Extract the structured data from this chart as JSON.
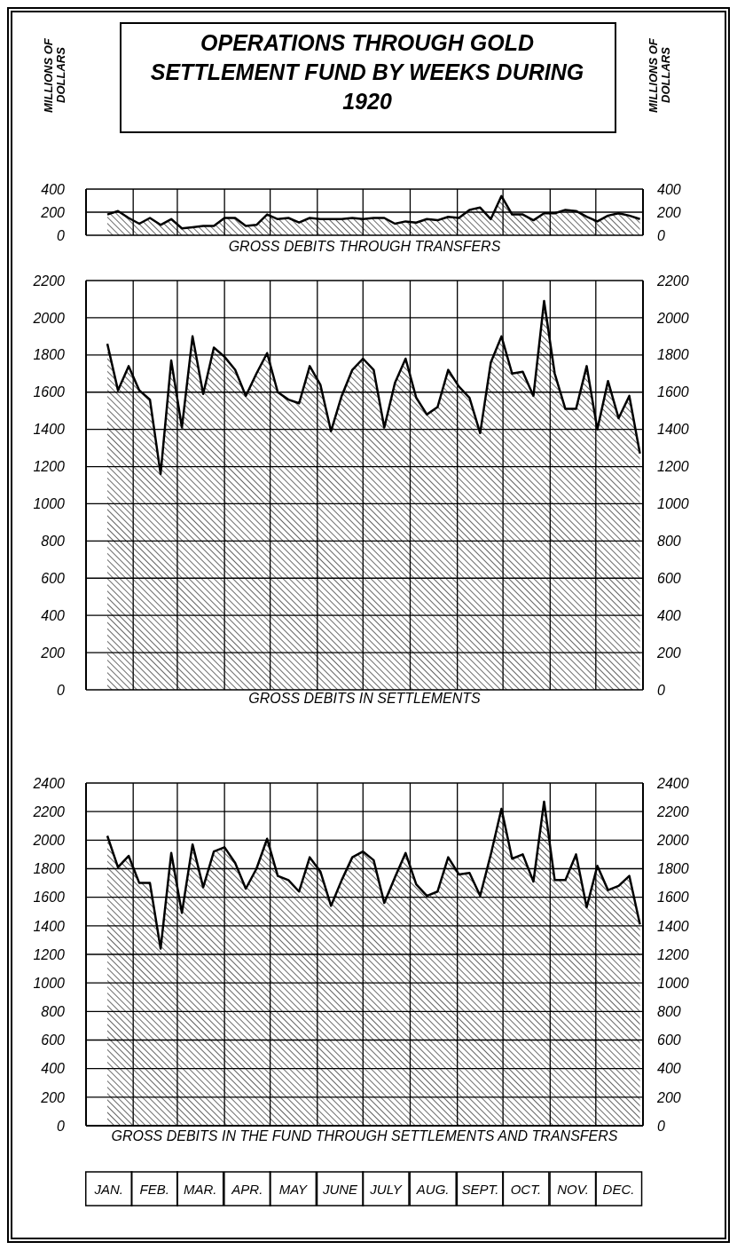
{
  "chart_data": [
    {
      "type": "area",
      "title": "OPERATIONS THROUGH GOLD SETTLEMENT FUND BY WEEKS DURING 1920",
      "ylabel": "MILLIONS OF DOLLARS",
      "y2label": "MILLIONS OF DOLLARS",
      "xlabel": "GROSS DEBITS THROUGH TRANSFERS",
      "x": [
        "1920-01-15",
        "1920-01-22",
        "1920-01-29",
        "1920-02-05",
        "1920-02-12",
        "1920-02-19",
        "1920-02-26",
        "1920-03-04",
        "1920-03-11",
        "1920-03-18",
        "1920-03-25",
        "1920-04-01",
        "1920-04-08",
        "1920-04-15",
        "1920-04-22",
        "1920-04-29",
        "1920-05-06",
        "1920-05-13",
        "1920-05-20",
        "1920-05-27",
        "1920-06-03",
        "1920-06-10",
        "1920-06-17",
        "1920-06-24",
        "1920-07-01",
        "1920-07-08",
        "1920-07-15",
        "1920-07-22",
        "1920-07-29",
        "1920-08-05",
        "1920-08-12",
        "1920-08-19",
        "1920-08-26",
        "1920-09-02",
        "1920-09-09",
        "1920-09-16",
        "1920-09-23",
        "1920-09-30",
        "1920-10-07",
        "1920-10-14",
        "1920-10-21",
        "1920-10-28",
        "1920-11-04",
        "1920-11-11",
        "1920-11-18",
        "1920-11-25",
        "1920-12-02",
        "1920-12-09",
        "1920-12-16",
        "1920-12-23",
        "1920-12-30"
      ],
      "values": [
        180,
        210,
        150,
        100,
        150,
        90,
        140,
        60,
        70,
        80,
        80,
        150,
        150,
        80,
        90,
        180,
        140,
        150,
        110,
        150,
        140,
        140,
        140,
        150,
        140,
        150,
        150,
        100,
        120,
        110,
        140,
        130,
        160,
        150,
        220,
        240,
        140,
        340,
        180,
        180,
        130,
        190,
        190,
        220,
        210,
        160,
        120,
        170,
        190,
        170,
        140
      ],
      "color": "#000000",
      "xlim": [
        "1920-01-01",
        "1921-01-01"
      ],
      "xticks": [
        {
          "value": "1920-01-01",
          "label": null
        },
        {
          "value": "1920-02-01",
          "label": null
        },
        {
          "value": "1920-03-01",
          "label": null
        },
        {
          "value": "1920-04-01",
          "label": null
        },
        {
          "value": "1920-05-01",
          "label": null
        },
        {
          "value": "1920-06-01",
          "label": null
        },
        {
          "value": "1920-07-01",
          "label": null
        },
        {
          "value": "1920-08-01",
          "label": null
        },
        {
          "value": "1920-09-01",
          "label": null
        },
        {
          "value": "1920-10-01",
          "label": null
        },
        {
          "value": "1920-11-01",
          "label": null
        },
        {
          "value": "1920-12-01",
          "label": null
        },
        {
          "value": "1921-01-01",
          "label": null
        }
      ],
      "ylim": [
        0,
        400
      ],
      "yticks": [
        0,
        200,
        400
      ],
      "y2lim": [
        0,
        400
      ],
      "y2ticks": [
        0,
        200,
        400
      ],
      "grid": true,
      "tick_labels": "y"
    },
    {
      "type": "area",
      "xlabel": "GROSS DEBITS IN SETTLEMENTS",
      "x": [
        "1920-01-15",
        "1920-01-22",
        "1920-01-29",
        "1920-02-05",
        "1920-02-12",
        "1920-02-19",
        "1920-02-26",
        "1920-03-04",
        "1920-03-11",
        "1920-03-18",
        "1920-03-25",
        "1920-04-01",
        "1920-04-08",
        "1920-04-15",
        "1920-04-22",
        "1920-04-29",
        "1920-05-06",
        "1920-05-13",
        "1920-05-20",
        "1920-05-27",
        "1920-06-03",
        "1920-06-10",
        "1920-06-17",
        "1920-06-24",
        "1920-07-01",
        "1920-07-08",
        "1920-07-15",
        "1920-07-22",
        "1920-07-29",
        "1920-08-05",
        "1920-08-12",
        "1920-08-19",
        "1920-08-26",
        "1920-09-02",
        "1920-09-09",
        "1920-09-16",
        "1920-09-23",
        "1920-09-30",
        "1920-10-07",
        "1920-10-14",
        "1920-10-21",
        "1920-10-28",
        "1920-11-04",
        "1920-11-11",
        "1920-11-18",
        "1920-11-25",
        "1920-12-02",
        "1920-12-09",
        "1920-12-16",
        "1920-12-23",
        "1920-12-30"
      ],
      "values": [
        1860,
        1610,
        1740,
        1610,
        1560,
        1160,
        1770,
        1410,
        1900,
        1590,
        1840,
        1790,
        1720,
        1580,
        1700,
        1810,
        1600,
        1560,
        1540,
        1740,
        1640,
        1390,
        1580,
        1720,
        1780,
        1720,
        1410,
        1650,
        1780,
        1570,
        1480,
        1520,
        1720,
        1630,
        1570,
        1380,
        1760,
        1900,
        1700,
        1710,
        1580,
        2090,
        1700,
        1510,
        1510,
        1740,
        1400,
        1660,
        1460,
        1580,
        1270
      ],
      "color": "#000000",
      "xlim": [
        "1920-01-01",
        "1921-01-01"
      ],
      "xticks": [
        {
          "value": "1920-01-01",
          "label": null
        },
        {
          "value": "1920-02-01",
          "label": null
        },
        {
          "value": "1920-03-01",
          "label": null
        },
        {
          "value": "1920-04-01",
          "label": null
        },
        {
          "value": "1920-05-01",
          "label": null
        },
        {
          "value": "1920-06-01",
          "label": null
        },
        {
          "value": "1920-07-01",
          "label": null
        },
        {
          "value": "1920-08-01",
          "label": null
        },
        {
          "value": "1920-09-01",
          "label": null
        },
        {
          "value": "1920-10-01",
          "label": null
        },
        {
          "value": "1920-11-01",
          "label": null
        },
        {
          "value": "1920-12-01",
          "label": null
        },
        {
          "value": "1921-01-01",
          "label": null
        }
      ],
      "ylim": [
        0,
        2200
      ],
      "yticks": [
        0,
        200,
        400,
        600,
        800,
        1000,
        1200,
        1400,
        1600,
        1800,
        2000,
        2200
      ],
      "y2lim": [
        0,
        2200
      ],
      "y2ticks": [
        0,
        200,
        400,
        600,
        800,
        1000,
        1200,
        1400,
        1600,
        1800,
        2000,
        2200
      ],
      "grid": true,
      "tick_labels": "y"
    },
    {
      "type": "area",
      "xlabel": "GROSS DEBITS IN THE FUND THROUGH SETTLEMENTS AND TRANSFERS",
      "x": [
        "1920-01-15",
        "1920-01-22",
        "1920-01-29",
        "1920-02-05",
        "1920-02-12",
        "1920-02-19",
        "1920-02-26",
        "1920-03-04",
        "1920-03-11",
        "1920-03-18",
        "1920-03-25",
        "1920-04-01",
        "1920-04-08",
        "1920-04-15",
        "1920-04-22",
        "1920-04-29",
        "1920-05-06",
        "1920-05-13",
        "1920-05-20",
        "1920-05-27",
        "1920-06-03",
        "1920-06-10",
        "1920-06-17",
        "1920-06-24",
        "1920-07-01",
        "1920-07-08",
        "1920-07-15",
        "1920-07-22",
        "1920-07-29",
        "1920-08-05",
        "1920-08-12",
        "1920-08-19",
        "1920-08-26",
        "1920-09-02",
        "1920-09-09",
        "1920-09-16",
        "1920-09-23",
        "1920-09-30",
        "1920-10-07",
        "1920-10-14",
        "1920-10-21",
        "1920-10-28",
        "1920-11-04",
        "1920-11-11",
        "1920-11-18",
        "1920-11-25",
        "1920-12-02",
        "1920-12-09",
        "1920-12-16",
        "1920-12-23",
        "1920-12-30"
      ],
      "values": [
        2030,
        1810,
        1890,
        1700,
        1700,
        1240,
        1910,
        1490,
        1970,
        1670,
        1920,
        1950,
        1840,
        1660,
        1800,
        2010,
        1750,
        1720,
        1640,
        1880,
        1780,
        1540,
        1720,
        1880,
        1920,
        1860,
        1560,
        1740,
        1910,
        1690,
        1610,
        1640,
        1880,
        1760,
        1770,
        1610,
        1900,
        2220,
        1870,
        1900,
        1710,
        2270,
        1720,
        1720,
        1900,
        1530,
        1820,
        1650,
        1680,
        1750,
        1410
      ],
      "color": "#000000",
      "xlim": [
        "1920-01-01",
        "1921-01-01"
      ],
      "xticks": [
        {
          "value": "1920-01-01",
          "label": null
        },
        {
          "value": "1920-02-01",
          "label": null
        },
        {
          "value": "1920-03-01",
          "label": null
        },
        {
          "value": "1920-04-01",
          "label": null
        },
        {
          "value": "1920-05-01",
          "label": null
        },
        {
          "value": "1920-06-01",
          "label": null
        },
        {
          "value": "1920-07-01",
          "label": null
        },
        {
          "value": "1920-08-01",
          "label": null
        },
        {
          "value": "1920-09-01",
          "label": null
        },
        {
          "value": "1920-10-01",
          "label": null
        },
        {
          "value": "1920-11-01",
          "label": null
        },
        {
          "value": "1920-12-01",
          "label": null
        },
        {
          "value": "1921-01-01",
          "label": null
        },
        {
          "value": "1920-01-16",
          "label": "JAN."
        },
        {
          "value": "1920-02-15",
          "label": "FEB."
        },
        {
          "value": "1920-03-16",
          "label": "MAR."
        },
        {
          "value": "1920-04-16",
          "label": "APR."
        },
        {
          "value": "1920-05-16",
          "label": "MAY"
        },
        {
          "value": "1920-06-16",
          "label": "JUNE"
        },
        {
          "value": "1920-07-16",
          "label": "JULY"
        },
        {
          "value": "1920-08-16",
          "label": "AUG."
        },
        {
          "value": "1920-09-16",
          "label": "SEPT."
        },
        {
          "value": "1920-10-16",
          "label": "OCT."
        },
        {
          "value": "1920-11-16",
          "label": "NOV."
        },
        {
          "value": "1920-12-16",
          "label": "DEC."
        }
      ],
      "ylim": [
        0,
        2400
      ],
      "yticks": [
        0,
        200,
        400,
        600,
        800,
        1000,
        1200,
        1400,
        1600,
        1800,
        2000,
        2200,
        2400
      ],
      "y2lim": [
        0,
        2400
      ],
      "y2ticks": [
        0,
        200,
        400,
        600,
        800,
        1000,
        1200,
        1400,
        1600,
        1800,
        2000,
        2200,
        2400
      ],
      "grid": true
    }
  ]
}
